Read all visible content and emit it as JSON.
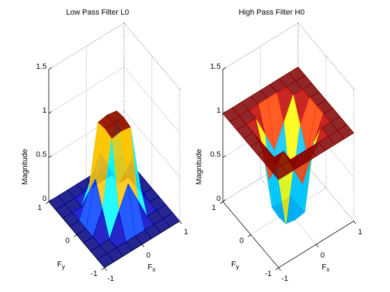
{
  "chart_data": [
    {
      "type": "surface",
      "title": "Low Pass Filter L0",
      "x": [
        -1,
        -0.75,
        -0.5,
        -0.25,
        0,
        0.25,
        0.5,
        0.75,
        1
      ],
      "y": [
        -1,
        -0.75,
        -0.5,
        -0.25,
        0,
        0.25,
        0.5,
        0.75,
        1
      ],
      "z": [
        [
          0,
          0,
          0,
          0,
          0,
          0,
          0,
          0,
          0
        ],
        [
          0,
          0,
          0,
          0,
          0,
          0,
          0,
          0,
          0
        ],
        [
          0,
          0,
          0,
          0.25,
          0.5,
          0.25,
          0,
          0,
          0
        ],
        [
          0,
          0,
          0.25,
          0.98,
          1,
          0.98,
          0.25,
          0,
          0
        ],
        [
          0,
          0,
          0.5,
          1,
          1,
          1,
          0.5,
          0,
          0
        ],
        [
          0,
          0,
          0.25,
          0.98,
          1,
          0.98,
          0.25,
          0,
          0
        ],
        [
          0,
          0,
          0,
          0.25,
          0.5,
          0.25,
          0,
          0,
          0
        ],
        [
          0,
          0,
          0,
          0,
          0,
          0,
          0,
          0,
          0
        ],
        [
          0,
          0,
          0,
          0,
          0,
          0,
          0,
          0,
          0
        ]
      ],
      "xlim": [
        -1,
        1
      ],
      "ylim": [
        -1,
        1
      ],
      "zlim": [
        0,
        1.5
      ],
      "xticks": [
        -1,
        0,
        1
      ],
      "yticks": [
        -1,
        0,
        1
      ],
      "zticks": [
        0,
        0.5,
        1,
        1.5
      ],
      "xlabel": [
        "F",
        "x"
      ],
      "ylabel": [
        "F",
        "y"
      ],
      "zlabel": "Magnitude",
      "colormap": "jet",
      "clim": [
        0,
        1
      ],
      "grid": true
    },
    {
      "type": "surface",
      "title": "High Pass Filter H0",
      "x": [
        -1,
        -0.75,
        -0.5,
        -0.25,
        0,
        0.25,
        0.5,
        0.75,
        1
      ],
      "y": [
        -1,
        -0.75,
        -0.5,
        -0.25,
        0,
        0.25,
        0.5,
        0.75,
        1
      ],
      "z": [
        [
          1,
          1,
          1,
          1,
          1,
          1,
          1,
          1,
          1
        ],
        [
          1,
          1,
          1,
          1,
          1,
          1,
          1,
          1,
          1
        ],
        [
          1,
          1,
          1,
          0.75,
          0.5,
          0.75,
          1,
          1,
          1
        ],
        [
          1,
          1,
          0.75,
          0.02,
          0,
          0.02,
          0.75,
          1,
          1
        ],
        [
          1,
          1,
          0.5,
          0,
          0,
          0,
          0.5,
          1,
          1
        ],
        [
          1,
          1,
          0.75,
          0.02,
          0,
          0.02,
          0.75,
          1,
          1
        ],
        [
          1,
          1,
          1,
          0.75,
          0.5,
          0.75,
          1,
          1,
          1
        ],
        [
          1,
          1,
          1,
          1,
          1,
          1,
          1,
          1,
          1
        ],
        [
          1,
          1,
          1,
          1,
          1,
          1,
          1,
          1,
          1
        ]
      ],
      "xlim": [
        -1,
        1
      ],
      "ylim": [
        -1,
        1
      ],
      "zlim": [
        0,
        1.5
      ],
      "xticks": [
        -1,
        0,
        1
      ],
      "yticks": [
        -1,
        0,
        1
      ],
      "zticks": [
        0,
        0.5,
        1,
        1.5
      ],
      "xlabel": [
        "F",
        "x"
      ],
      "ylabel": [
        "F",
        "y"
      ],
      "zlabel": "Magnitude",
      "colormap": "jet",
      "clim": [
        0,
        1
      ],
      "grid": true
    }
  ]
}
